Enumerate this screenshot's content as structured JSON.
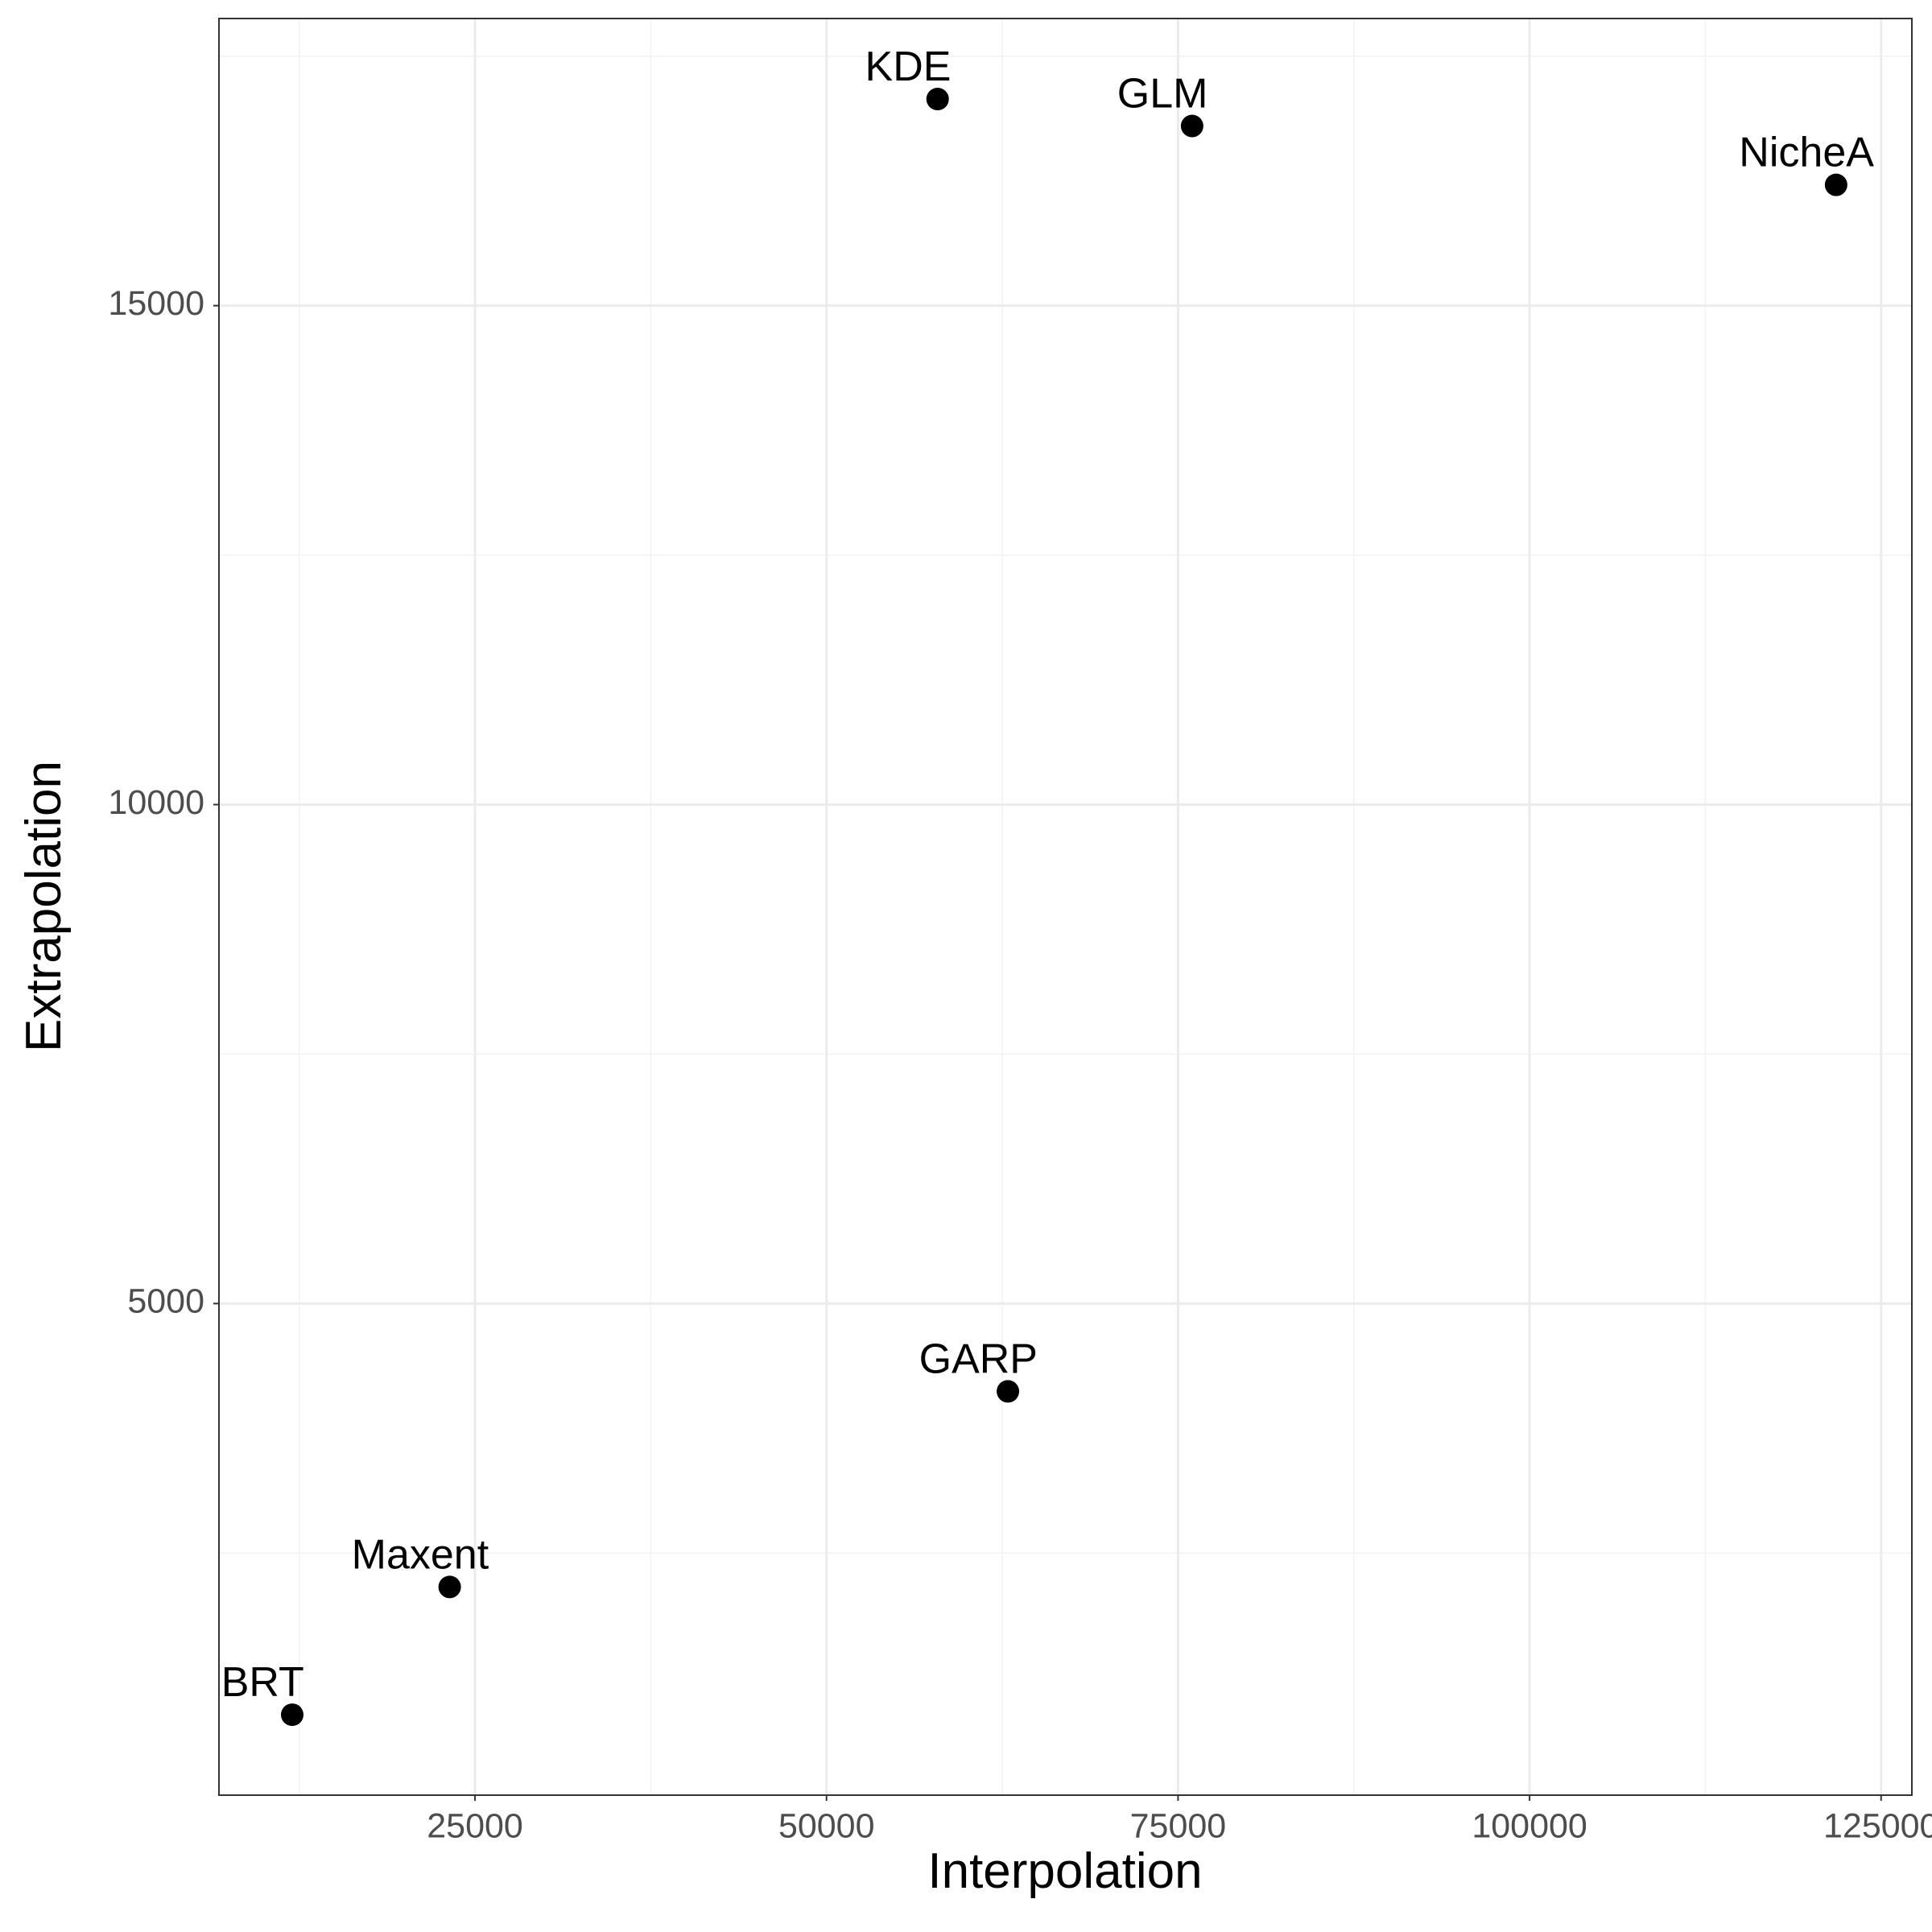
{
  "chart_data": {
    "type": "scatter",
    "x_label": "Interpolation",
    "y_label": "Extrapolation",
    "labels": [
      "KDE",
      "GLM",
      "NicheA",
      "GARP",
      "Maxent",
      "BRT"
    ],
    "x": [
      57900,
      76000,
      121800,
      62900,
      23200,
      12000
    ],
    "values": [
      17070,
      16800,
      16210,
      4120,
      2160,
      880
    ],
    "color": "#000000",
    "xlim": [
      6790,
      127190
    ],
    "xticks": [
      25000,
      50000,
      75000,
      100000,
      125000
    ],
    "ylim": [
      74,
      17877
    ],
    "yticks": [
      5000,
      10000,
      15000
    ],
    "grid": true
  }
}
